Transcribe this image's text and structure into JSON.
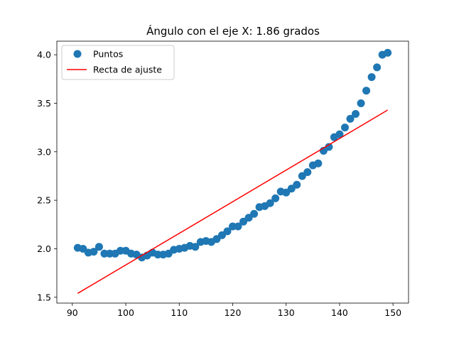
{
  "chart_data": {
    "type": "scatter",
    "title": "Ángulo con el eje X: 1.86 grados",
    "xlabel": "",
    "ylabel": "",
    "xlim": [
      87.1,
      152.9
    ],
    "ylim": [
      1.44,
      4.14
    ],
    "xticks": [
      90,
      100,
      110,
      120,
      130,
      140,
      150
    ],
    "yticks": [
      1.5,
      2.0,
      2.5,
      3.0,
      3.5,
      4.0
    ],
    "xtick_labels": [
      "90",
      "100",
      "110",
      "120",
      "130",
      "140",
      "150"
    ],
    "ytick_labels": [
      "1.5",
      "2.0",
      "2.5",
      "3.0",
      "3.5",
      "4.0"
    ],
    "grid": false,
    "legend_position": "upper-left",
    "series": [
      {
        "name": "Puntos",
        "kind": "scatter",
        "color": "#1f77b4",
        "x": [
          91,
          92,
          93,
          94,
          95,
          96,
          97,
          98,
          99,
          100,
          101,
          102,
          103,
          104,
          105,
          106,
          107,
          108,
          109,
          110,
          111,
          112,
          113,
          114,
          115,
          116,
          117,
          118,
          119,
          120,
          121,
          122,
          123,
          124,
          125,
          126,
          127,
          128,
          129,
          130,
          131,
          132,
          133,
          134,
          135,
          136,
          137,
          138,
          139,
          140,
          141,
          142,
          143,
          144,
          145,
          146,
          147,
          148,
          149
        ],
        "y": [
          2.01,
          2.0,
          1.96,
          1.97,
          2.02,
          1.95,
          1.95,
          1.95,
          1.98,
          1.98,
          1.95,
          1.94,
          1.91,
          1.93,
          1.96,
          1.94,
          1.94,
          1.95,
          1.99,
          2.0,
          2.01,
          2.03,
          2.02,
          2.07,
          2.08,
          2.07,
          2.1,
          2.14,
          2.18,
          2.23,
          2.23,
          2.28,
          2.32,
          2.36,
          2.43,
          2.44,
          2.47,
          2.52,
          2.59,
          2.58,
          2.62,
          2.66,
          2.75,
          2.79,
          2.86,
          2.88,
          3.01,
          3.05,
          3.15,
          3.18,
          3.25,
          3.34,
          3.39,
          3.5,
          3.63,
          3.77,
          3.87,
          4.0,
          4.02
        ]
      },
      {
        "name": "Recta de ajuste",
        "kind": "line",
        "color": "#ff0000",
        "x": [
          91,
          149
        ],
        "y": [
          1.54,
          3.43
        ]
      }
    ]
  }
}
